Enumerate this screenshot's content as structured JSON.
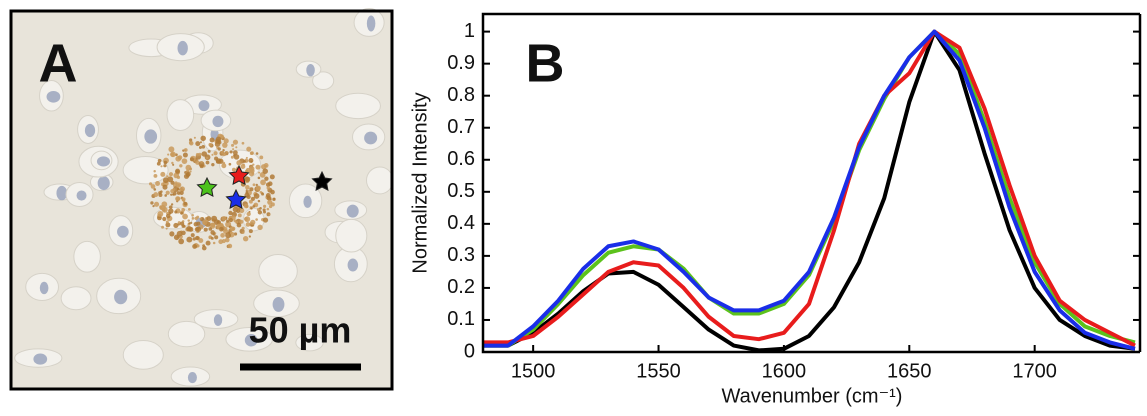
{
  "panel_a": {
    "label": "A",
    "scale_bar": "50 µm"
  },
  "chart_data": {
    "type": "line",
    "panel_label": "B",
    "xlabel": "Wavenumber (cm⁻¹)",
    "ylabel": "Normalized Intensity",
    "x": [
      1480,
      1490,
      1500,
      1510,
      1520,
      1530,
      1540,
      1550,
      1560,
      1570,
      1580,
      1590,
      1600,
      1610,
      1620,
      1630,
      1640,
      1650,
      1660,
      1670,
      1680,
      1690,
      1700,
      1710,
      1720,
      1730,
      1740
    ],
    "series": [
      {
        "color": "#000000",
        "values": [
          0.02,
          0.02,
          0.06,
          0.12,
          0.19,
          0.245,
          0.25,
          0.21,
          0.14,
          0.07,
          0.02,
          0.005,
          0.01,
          0.05,
          0.14,
          0.28,
          0.48,
          0.78,
          1.0,
          0.88,
          0.62,
          0.38,
          0.2,
          0.1,
          0.05,
          0.02,
          0.01
        ]
      },
      {
        "color": "#5cc21c",
        "values": [
          0.02,
          0.02,
          0.07,
          0.15,
          0.24,
          0.31,
          0.33,
          0.32,
          0.26,
          0.17,
          0.12,
          0.12,
          0.15,
          0.24,
          0.41,
          0.63,
          0.79,
          0.92,
          1.0,
          0.93,
          0.72,
          0.48,
          0.28,
          0.15,
          0.08,
          0.05,
          0.03
        ]
      },
      {
        "color": "#e81c1c",
        "values": [
          0.03,
          0.03,
          0.05,
          0.11,
          0.18,
          0.25,
          0.28,
          0.27,
          0.2,
          0.11,
          0.05,
          0.04,
          0.06,
          0.15,
          0.38,
          0.65,
          0.8,
          0.87,
          1.0,
          0.95,
          0.76,
          0.52,
          0.3,
          0.16,
          0.1,
          0.06,
          0.02
        ]
      },
      {
        "color": "#1a2ee8",
        "values": [
          0.02,
          0.02,
          0.08,
          0.16,
          0.26,
          0.33,
          0.345,
          0.32,
          0.25,
          0.17,
          0.13,
          0.13,
          0.16,
          0.25,
          0.42,
          0.64,
          0.8,
          0.92,
          1.0,
          0.91,
          0.7,
          0.45,
          0.25,
          0.13,
          0.06,
          0.03,
          0.01
        ]
      }
    ],
    "xlim": [
      1480,
      1742
    ],
    "ylim": [
      0,
      1.03
    ],
    "xticks": [
      1500,
      1550,
      1600,
      1650,
      1700
    ],
    "yticks": [
      0,
      0.1,
      0.2,
      0.3,
      0.4,
      0.5,
      0.6,
      0.7,
      0.8,
      0.9,
      1
    ]
  }
}
